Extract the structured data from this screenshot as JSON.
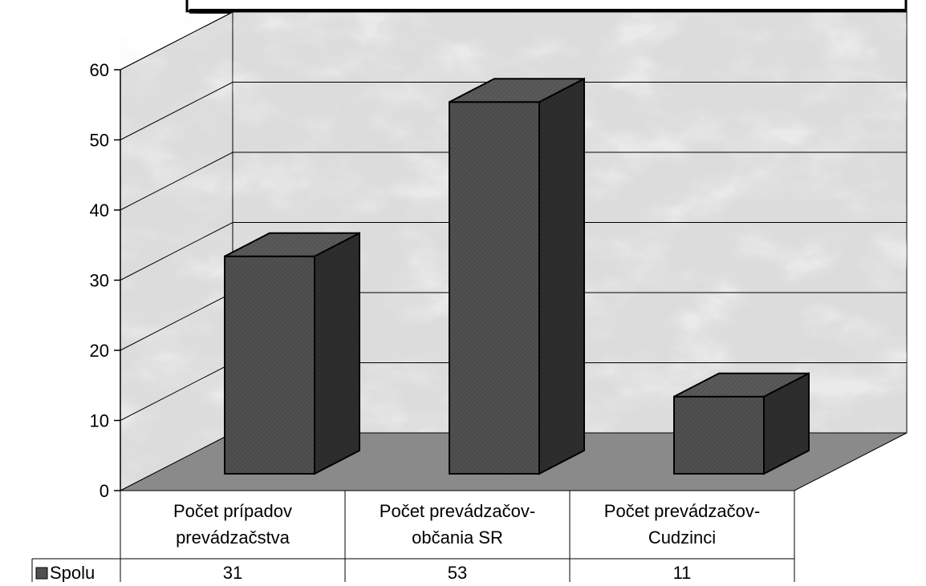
{
  "chart_data": {
    "type": "bar",
    "style": "3d-column-with-data-table",
    "categories": [
      [
        "Počet prípadov",
        "prevádzačstva"
      ],
      [
        "Počet prevádzačov-",
        "občania SR"
      ],
      [
        "Počet prevádzačov-",
        "Cudzinci"
      ]
    ],
    "series": [
      {
        "name": "Spolu",
        "values": [
          31,
          53,
          11
        ]
      }
    ],
    "ylim": [
      0,
      60
    ],
    "yticks": [
      "0",
      "10",
      "20",
      "30",
      "40",
      "50",
      "60"
    ],
    "grid": true,
    "legend": "data-table-left",
    "title": "",
    "xlabel": "",
    "ylabel": ""
  },
  "colors": {
    "bar_front": "#505050",
    "bar_side": "#2e2e2e",
    "bar_top": "#5a5a5a",
    "floor": "#8a8a8a",
    "wall": "#dcdcdc",
    "grid": "#000000",
    "legend_key": "#505050"
  }
}
